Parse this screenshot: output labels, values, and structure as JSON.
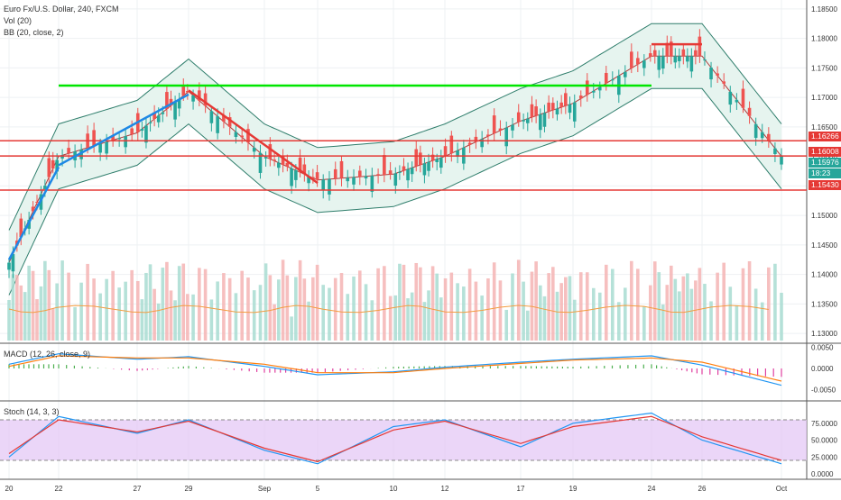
{
  "header": {
    "title": "Euro Fx/U.S. Dollar, 240, FXCM",
    "vol_label": "Vol (20)",
    "bb_label": "BB (20, close, 2)",
    "macd_label": "MACD (12, 26, close, 9)",
    "stoch_label": "Stoch (14, 3, 3)"
  },
  "price_badges": [
    {
      "text": "1.16266",
      "color": "#e53935"
    },
    {
      "text": "1.16008",
      "color": "#e53935"
    },
    {
      "text": "1.15976",
      "color": "#26a69a"
    },
    {
      "text": "18:23",
      "color": "#26a69a"
    },
    {
      "text": "1.15430",
      "color": "#e53935"
    }
  ],
  "axes": {
    "price_ticks": [
      "1.18500",
      "1.18000",
      "1.17500",
      "1.17000",
      "1.16500",
      "1.16000",
      "1.15500",
      "1.15000",
      "1.14500",
      "1.14000",
      "1.13500",
      "1.13000"
    ],
    "macd_ticks": [
      "0.0050",
      "0.0000",
      "-0.0050"
    ],
    "stoch_ticks": [
      "75.0000",
      "50.0000",
      "25.0000",
      "0.0000"
    ],
    "x_ticks": [
      "20",
      "22",
      "27",
      "29",
      "Sep",
      "5",
      "10",
      "12",
      "17",
      "19",
      "24",
      "26",
      "Oct"
    ]
  },
  "chart_data": {
    "type": "line",
    "title": "Euro Fx/U.S. Dollar, 240, FXCM",
    "price_ylim": [
      1.1285,
      1.1865
    ],
    "price_x": [
      "20",
      "22",
      "27",
      "29",
      "Sep",
      "5",
      "10",
      "12",
      "17",
      "19",
      "24",
      "26",
      "Oct"
    ],
    "price_close": [
      1.142,
      1.16,
      1.164,
      1.171,
      1.16,
      1.156,
      1.157,
      1.16,
      1.166,
      1.169,
      1.177,
      1.177,
      1.16
    ],
    "horizontal_levels": [
      1.16266,
      1.16008,
      1.1543
    ],
    "trendlines": [
      {
        "color": "#00e600",
        "from": [
          "22",
          1.172
        ],
        "to": [
          "24",
          1.172
        ]
      },
      {
        "color": "#e53935",
        "from": [
          "24",
          1.179
        ],
        "to": [
          "26",
          1.179
        ]
      },
      {
        "color": "#e53935",
        "from": [
          "29",
          1.1712
        ],
        "to": [
          "5",
          1.1555
        ]
      },
      {
        "color": "#1e88e5",
        "from": [
          "20",
          1.1425
        ],
        "to": [
          "22",
          1.1582
        ]
      },
      {
        "color": "#1e88e5",
        "from": [
          "22",
          1.1585
        ],
        "to": [
          "29",
          1.1705
        ]
      }
    ],
    "macd": {
      "ylim": [
        -0.0075,
        0.006
      ],
      "macd_line": [
        0.001,
        0.0035,
        0.0022,
        0.0028,
        0.0005,
        -0.0015,
        -0.0008,
        0.0003,
        0.0015,
        0.0022,
        0.003,
        0.0008,
        -0.004
      ],
      "signal_line": [
        0.0005,
        0.003,
        0.0025,
        0.0025,
        0.001,
        -0.001,
        -0.001,
        0.0,
        0.0012,
        0.002,
        0.0025,
        0.0015,
        -0.003
      ]
    },
    "stoch": {
      "ylim": [
        0,
        100
      ],
      "bands": [
        20,
        80
      ],
      "k": [
        25,
        85,
        60,
        80,
        35,
        15,
        70,
        80,
        40,
        75,
        90,
        50,
        15
      ],
      "d": [
        30,
        80,
        62,
        78,
        38,
        18,
        65,
        78,
        45,
        70,
        85,
        55,
        20
      ]
    }
  }
}
